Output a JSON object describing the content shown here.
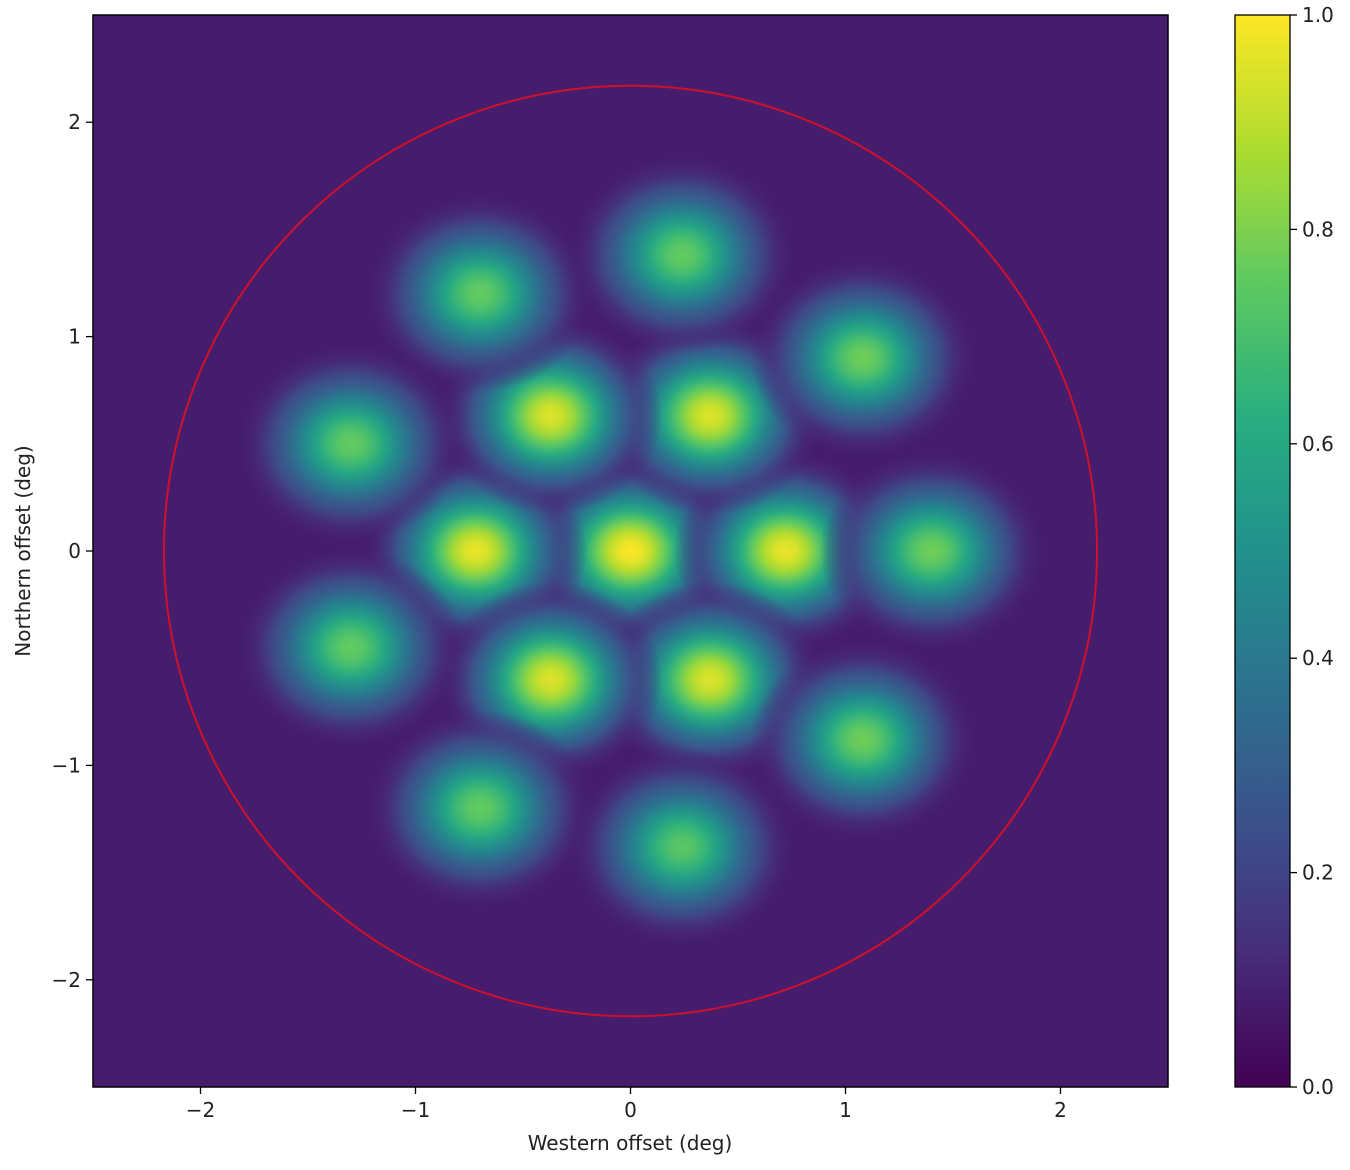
{
  "chart_data": {
    "type": "heatmap",
    "colormap": "viridis",
    "x_label": "Western offset (deg)",
    "y_label": "Northern offset (deg)",
    "xlim": [
      -2.5,
      2.5
    ],
    "ylim": [
      -2.5,
      2.5
    ],
    "xticks": [
      {
        "value": -2,
        "label": "−2"
      },
      {
        "value": -1,
        "label": "−1"
      },
      0,
      1,
      2
    ],
    "yticks": [
      {
        "value": -2,
        "label": "−2"
      },
      {
        "value": -1,
        "label": "−1"
      },
      0,
      1,
      2
    ],
    "clim": [
      0,
      1
    ],
    "cticks": [
      {
        "value": 0,
        "label": "0.0"
      },
      0.2,
      0.4,
      0.6,
      0.8,
      {
        "value": 1,
        "label": "1.0"
      }
    ],
    "background_level": 0.08,
    "x": [
      0,
      0.72,
      -0.72,
      1.4,
      0.37,
      -0.37,
      0.37,
      -0.37,
      1.08,
      1.08,
      -1.3,
      -1.3,
      -0.7,
      -0.7,
      0.24,
      0.24
    ],
    "y": [
      0,
      0,
      0,
      0,
      0.63,
      0.63,
      -0.6,
      -0.6,
      0.9,
      -0.88,
      0.5,
      -0.45,
      1.2,
      -1.2,
      1.38,
      -1.38
    ],
    "values": [
      1.0,
      0.97,
      0.97,
      0.78,
      0.95,
      0.95,
      0.95,
      0.95,
      0.78,
      0.78,
      0.76,
      0.76,
      0.76,
      0.76,
      0.76,
      0.74
    ],
    "circle_radius": 2.17,
    "circle_color": "#d0102a"
  }
}
